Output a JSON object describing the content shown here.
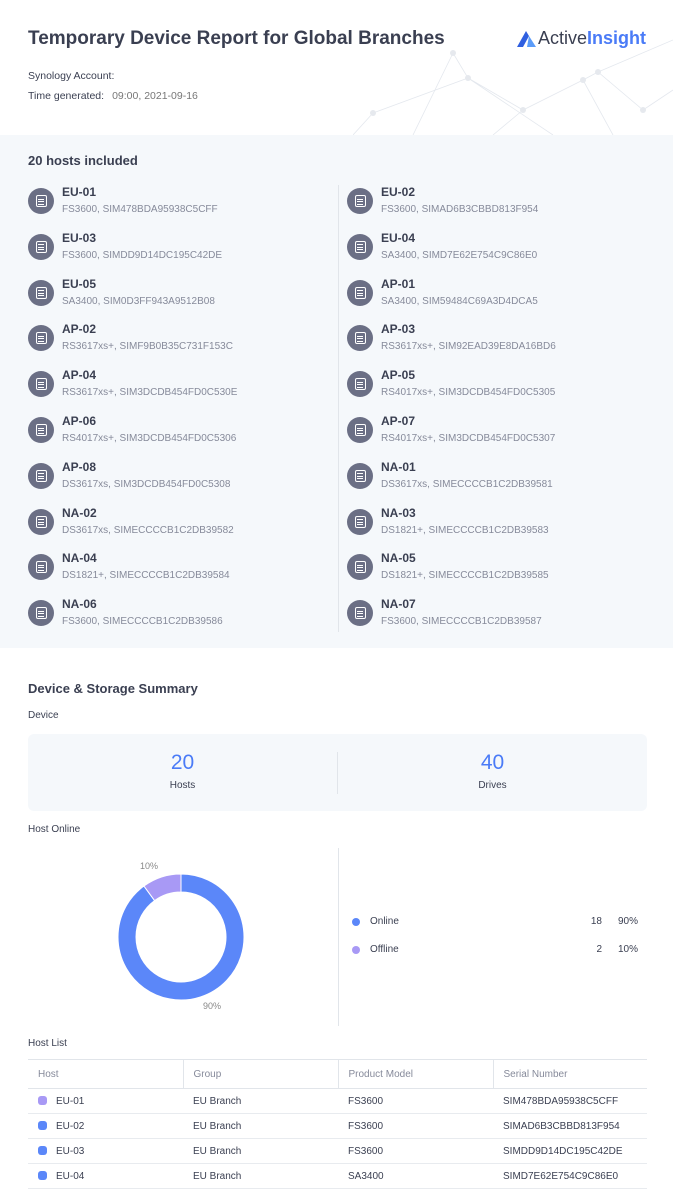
{
  "header": {
    "title": "Temporary Device Report for Global Branches",
    "logo_a": "Active",
    "logo_b": "Insight",
    "account_label": "Synology Account:",
    "account_value": "",
    "time_label": "Time generated:",
    "time_value": "09:00, 2021-09-16"
  },
  "hosts_section": {
    "title": "20 hosts included",
    "hosts": [
      {
        "name": "EU-01",
        "detail": "FS3600, SIM478BDA95938C5CFF"
      },
      {
        "name": "EU-02",
        "detail": "FS3600, SIMAD6B3CBBD813F954"
      },
      {
        "name": "EU-03",
        "detail": "FS3600, SIMDD9D14DC195C42DE"
      },
      {
        "name": "EU-04",
        "detail": "SA3400, SIMD7E62E754C9C86E0"
      },
      {
        "name": "EU-05",
        "detail": "SA3400, SIM0D3FF943A9512B08"
      },
      {
        "name": "AP-01",
        "detail": "SA3400, SIM59484C69A3D4DCA5"
      },
      {
        "name": "AP-02",
        "detail": "RS3617xs+, SIMF9B0B35C731F153C"
      },
      {
        "name": "AP-03",
        "detail": "RS3617xs+, SIM92EAD39E8DA16BD6"
      },
      {
        "name": "AP-04",
        "detail": "RS3617xs+, SIM3DCDB454FD0C530E"
      },
      {
        "name": "AP-05",
        "detail": "RS4017xs+, SIM3DCDB454FD0C5305"
      },
      {
        "name": "AP-06",
        "detail": "RS4017xs+, SIM3DCDB454FD0C5306"
      },
      {
        "name": "AP-07",
        "detail": "RS4017xs+, SIM3DCDB454FD0C5307"
      },
      {
        "name": "AP-08",
        "detail": "DS3617xs, SIM3DCDB454FD0C5308"
      },
      {
        "name": "NA-01",
        "detail": "DS3617xs, SIMECCCCB1C2DB39581"
      },
      {
        "name": "NA-02",
        "detail": "DS3617xs, SIMECCCCB1C2DB39582"
      },
      {
        "name": "NA-03",
        "detail": "DS1821+, SIMECCCCB1C2DB39583"
      },
      {
        "name": "NA-04",
        "detail": "DS1821+, SIMECCCCB1C2DB39584"
      },
      {
        "name": "NA-05",
        "detail": "DS1821+, SIMECCCCB1C2DB39585"
      },
      {
        "name": "NA-06",
        "detail": "FS3600, SIMECCCCB1C2DB39586"
      },
      {
        "name": "NA-07",
        "detail": "FS3600, SIMECCCCB1C2DB39587"
      }
    ]
  },
  "summary": {
    "title": "Device & Storage Summary",
    "device_label": "Device",
    "hosts_count": "20",
    "hosts_label": "Hosts",
    "drives_count": "40",
    "drives_label": "Drives",
    "host_online_label": "Host Online",
    "legend": [
      {
        "label": "Online",
        "count": "18",
        "pct": "90%",
        "color": "#5b87f9"
      },
      {
        "label": "Offline",
        "count": "2",
        "pct": "10%",
        "color": "#a899f5"
      }
    ]
  },
  "chart_data": {
    "type": "pie",
    "donut": true,
    "categories": [
      "Online",
      "Offline"
    ],
    "values": [
      18,
      2
    ],
    "data_labels": [
      "90%",
      "10%"
    ],
    "colors": [
      "#5b87f9",
      "#a899f5"
    ]
  },
  "host_list": {
    "label": "Host List",
    "columns": [
      "Host",
      "Group",
      "Product Model",
      "Serial Number"
    ],
    "rows": [
      {
        "host": "EU-01",
        "group": "EU Branch",
        "model": "FS3600",
        "serial": "SIM478BDA95938C5CFF",
        "status_color": "#a899f5"
      },
      {
        "host": "EU-02",
        "group": "EU Branch",
        "model": "FS3600",
        "serial": "SIMAD6B3CBBD813F954",
        "status_color": "#5b87f9"
      },
      {
        "host": "EU-03",
        "group": "EU Branch",
        "model": "FS3600",
        "serial": "SIMDD9D14DC195C42DE",
        "status_color": "#5b87f9"
      },
      {
        "host": "EU-04",
        "group": "EU Branch",
        "model": "SA3400",
        "serial": "SIMD7E62E754C9C86E0",
        "status_color": "#5b87f9"
      }
    ]
  }
}
